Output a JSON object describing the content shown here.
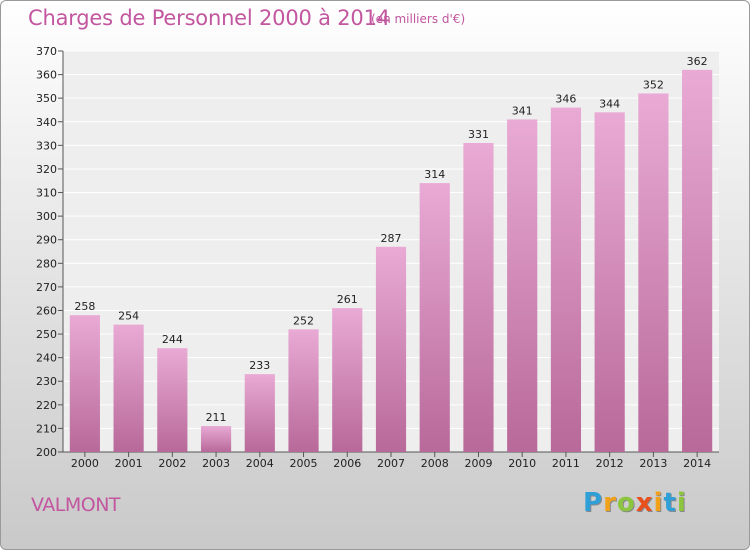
{
  "title": "Charges de Personnel 2000 à 2014",
  "subtitle": "(en milliers d'€)",
  "commune": "VALMONT",
  "logo": {
    "letters": [
      {
        "ch": "P",
        "color": "#2f9fd8"
      },
      {
        "ch": "r",
        "color": "#f1a21a"
      },
      {
        "ch": "o",
        "color": "#8cc63f"
      },
      {
        "ch": "x",
        "color": "#e8501c"
      },
      {
        "ch": "i",
        "color": "#f1a21a"
      },
      {
        "ch": "t",
        "color": "#2f9fd8"
      },
      {
        "ch": "i",
        "color": "#8cc63f"
      }
    ]
  },
  "colors": {
    "accent": "#c2569f",
    "bar_top": "#e9aad5",
    "bar_bottom": "#b8699a"
  },
  "chart_data": {
    "type": "bar",
    "categories": [
      "2000",
      "2001",
      "2002",
      "2003",
      "2004",
      "2005",
      "2006",
      "2007",
      "2008",
      "2009",
      "2010",
      "2011",
      "2012",
      "2013",
      "2014"
    ],
    "values": [
      258,
      254,
      244,
      211,
      233,
      252,
      261,
      287,
      314,
      331,
      341,
      346,
      344,
      352,
      362
    ],
    "title": "Charges de Personnel 2000 à 2014",
    "ylim": [
      200,
      370
    ],
    "yticks": [
      200,
      210,
      220,
      230,
      240,
      250,
      260,
      270,
      280,
      290,
      300,
      310,
      320,
      330,
      340,
      350,
      360,
      370
    ],
    "grid": true,
    "legend": "none"
  }
}
